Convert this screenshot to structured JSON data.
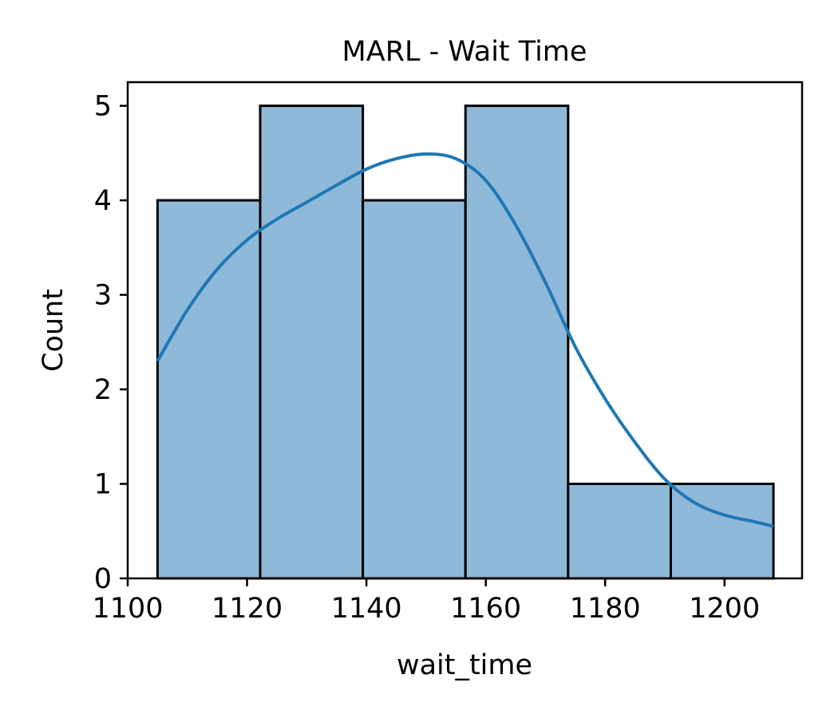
{
  "chart_data": {
    "type": "bar",
    "title": "MARL - Wait Time",
    "xlabel": "wait_time",
    "ylabel": "Count",
    "xlim": [
      1100,
      1213
    ],
    "ylim": [
      0,
      5.25
    ],
    "xticks": [
      1100,
      1120,
      1140,
      1160,
      1180,
      1200
    ],
    "yticks": [
      0,
      1,
      2,
      3,
      4,
      5
    ],
    "grid": false,
    "bins": [
      {
        "start": 1105.0,
        "end": 1122.2,
        "count": 4
      },
      {
        "start": 1122.2,
        "end": 1139.4,
        "count": 5
      },
      {
        "start": 1139.4,
        "end": 1156.6,
        "count": 4
      },
      {
        "start": 1156.6,
        "end": 1173.8,
        "count": 5
      },
      {
        "start": 1173.8,
        "end": 1191.0,
        "count": 1
      },
      {
        "start": 1191.0,
        "end": 1208.2,
        "count": 1
      }
    ],
    "kde": {
      "x": [
        1105,
        1110,
        1115,
        1120,
        1125,
        1130,
        1135,
        1140,
        1145,
        1150,
        1155,
        1160,
        1165,
        1170,
        1175,
        1180,
        1185,
        1190,
        1195,
        1200,
        1205,
        1208.2
      ],
      "y": [
        2.3,
        2.84,
        3.27,
        3.58,
        3.8,
        3.98,
        4.16,
        4.33,
        4.44,
        4.49,
        4.44,
        4.21,
        3.74,
        3.13,
        2.45,
        1.9,
        1.44,
        1.05,
        0.8,
        0.67,
        0.6,
        0.55
      ]
    },
    "colors": {
      "bar_fill": "#8fb9d9",
      "bar_edge": "#000000",
      "kde_line": "#1f77b4"
    }
  }
}
